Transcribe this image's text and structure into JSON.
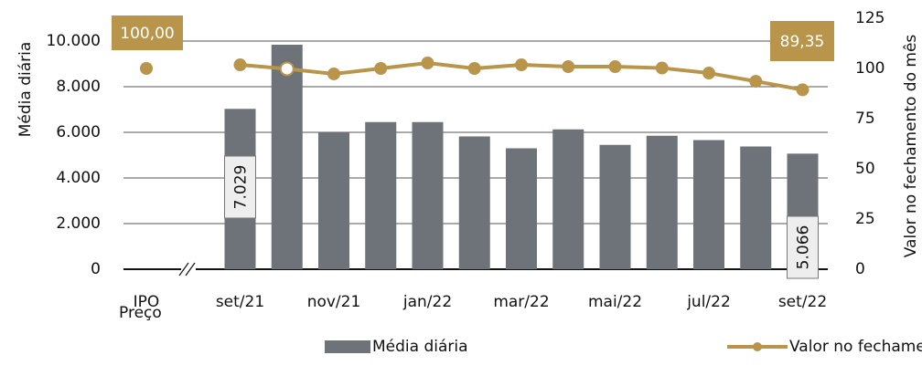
{
  "chart_data": {
    "type": "bar",
    "y_label": "Média diária",
    "y2_label": "Valor no fechamento do mês",
    "annotation": "Preço",
    "categories": [
      "IPO",
      null,
      "set/21",
      null,
      "nov/21",
      null,
      "jan/22",
      null,
      "mar/22",
      null,
      "mai/22",
      null,
      "jul/22",
      null,
      "set/22"
    ],
    "series": [
      {
        "name": "Média diária",
        "type": "bar",
        "color": "#6d7378",
        "values": [
          null,
          null,
          7029,
          9840,
          6000,
          6450,
          6450,
          5820,
          5300,
          6130,
          5450,
          5850,
          5660,
          5380,
          5066
        ],
        "value_labels": [
          null,
          null,
          "7.029",
          null,
          null,
          null,
          null,
          null,
          null,
          null,
          null,
          null,
          null,
          null,
          "5.066"
        ]
      },
      {
        "name": "Valor no fechamento",
        "type": "line",
        "axis": "y2",
        "color": "#b8954a",
        "values": [
          100,
          null,
          101.8,
          99.8,
          97.3,
          100,
          102.7,
          100,
          101.8,
          100.9,
          100.9,
          100.2,
          97.7,
          93.6,
          89.35
        ],
        "value_labels": [
          "100,00",
          null,
          null,
          null,
          null,
          null,
          null,
          null,
          null,
          null,
          null,
          null,
          null,
          null,
          "89,35"
        ]
      }
    ],
    "ylim": [
      0,
      11000
    ],
    "yticks": [
      0,
      {
        "value": 2000,
        "label": "2.000"
      },
      {
        "value": 4000,
        "label": "4.000"
      },
      {
        "value": 6000,
        "label": "6.000"
      },
      {
        "value": 8000,
        "label": "8.000"
      },
      {
        "value": 10000,
        "label": "10.000"
      }
    ],
    "y2lim": [
      0,
      125
    ],
    "y2ticks": [
      0,
      25,
      50,
      75,
      100,
      125
    ],
    "grid": true,
    "legend": "bottom"
  }
}
